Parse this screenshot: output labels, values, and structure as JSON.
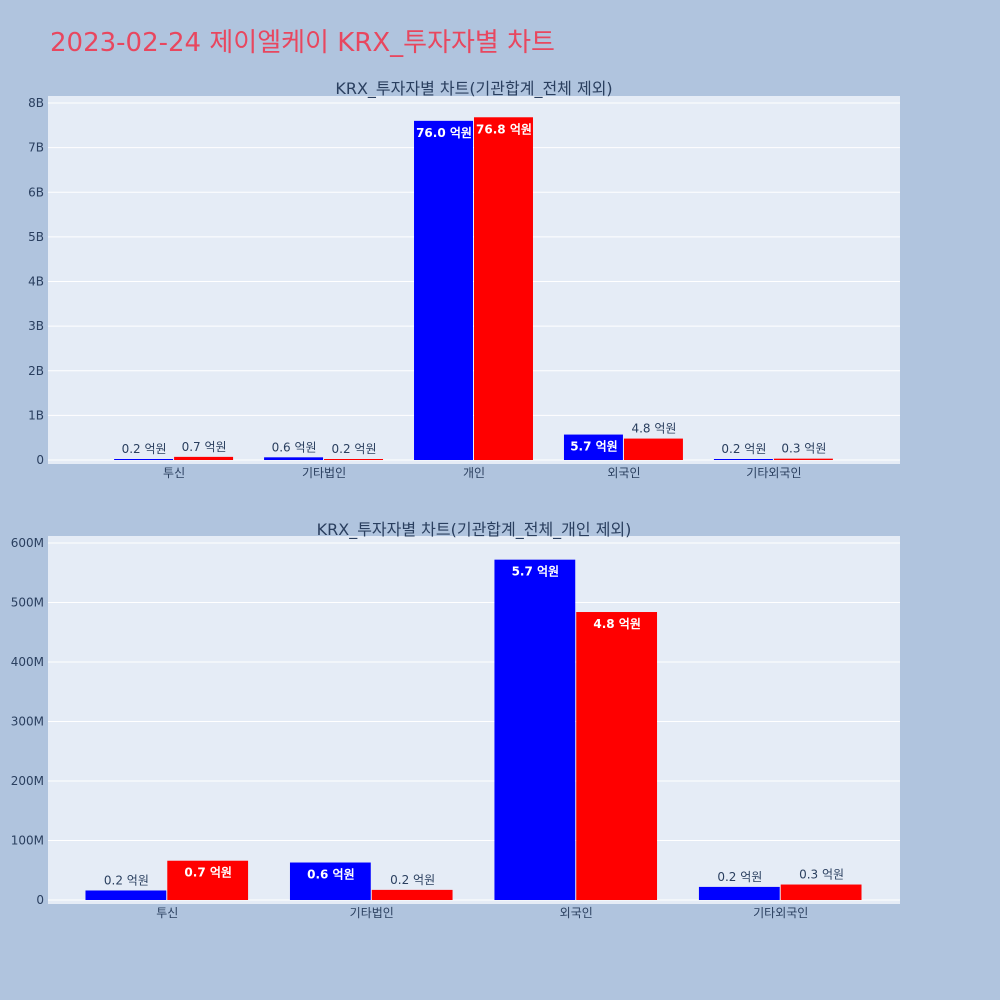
{
  "page": {
    "title": "2023-02-24 제이엘케이 KRX_투자자별 차트"
  },
  "colors": {
    "series_a": "#0000ff",
    "series_b": "#ff0000",
    "background": "#b0c4de",
    "plot_bg": "#e5ecf6",
    "title": "#e8475f"
  },
  "chart_data": [
    {
      "type": "bar",
      "title": "KRX_투자자별 차트(기관합계_전체 제외)",
      "categories": [
        "투신",
        "기타법인",
        "개인",
        "외국인",
        "기타외국인"
      ],
      "series": [
        {
          "values": [
            20000000,
            60000000,
            7600000000,
            570000000,
            20000000
          ],
          "labels": [
            "0.2 억원",
            "0.6 억원",
            "76.0 억원",
            "5.7 억원",
            "0.2 억원"
          ]
        },
        {
          "values": [
            70000000,
            20000000,
            7680000000,
            480000000,
            30000000
          ],
          "labels": [
            "0.7 억원",
            "0.2 억원",
            "76.8 억원",
            "4.8 억원",
            "0.3 억원"
          ]
        }
      ],
      "ylim": [
        0,
        8000000000
      ],
      "yticks": [
        0,
        1000000000,
        2000000000,
        3000000000,
        4000000000,
        5000000000,
        6000000000,
        7000000000,
        8000000000
      ],
      "ytick_labels": [
        "0",
        "1B",
        "2B",
        "3B",
        "4B",
        "5B",
        "6B",
        "7B",
        "8B"
      ],
      "grid": true,
      "legend": "none"
    },
    {
      "type": "bar",
      "title": "KRX_투자자별 차트(기관합계_전체_개인 제외)",
      "categories": [
        "투신",
        "기타법인",
        "외국인",
        "기타외국인"
      ],
      "series": [
        {
          "values": [
            16000000,
            63000000,
            572000000,
            22000000
          ],
          "labels": [
            "0.2 억원",
            "0.6 억원",
            "5.7 억원",
            "0.2 억원"
          ]
        },
        {
          "values": [
            66000000,
            17000000,
            484000000,
            26000000
          ],
          "labels": [
            "0.7 억원",
            "0.2 억원",
            "4.8 억원",
            "0.3 억원"
          ]
        }
      ],
      "ylim": [
        0,
        600000000
      ],
      "yticks": [
        0,
        100000000,
        200000000,
        300000000,
        400000000,
        500000000,
        600000000
      ],
      "ytick_labels": [
        "0",
        "100M",
        "200M",
        "300M",
        "400M",
        "500M",
        "600M"
      ],
      "grid": true,
      "legend": "none"
    }
  ]
}
